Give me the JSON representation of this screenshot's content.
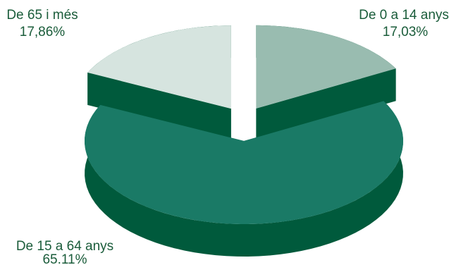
{
  "chart_data": {
    "type": "pie",
    "style": "3d-exploded",
    "title": "",
    "slices": [
      {
        "label": "De 0 a 14 anys",
        "value_label": "17,03%",
        "value": 17.03,
        "top_color": "#99bcb0",
        "side_color": "#005a3c"
      },
      {
        "label": "De 15 a 64 anys",
        "value_label": "65.11%",
        "value": 65.11,
        "top_color": "#1a7a66",
        "side_color": "#005a3c"
      },
      {
        "label": "De 65 i més",
        "value_label": "17,86%",
        "value": 17.86,
        "top_color": "#d6e4df",
        "side_color": "#005a3c"
      }
    ]
  }
}
